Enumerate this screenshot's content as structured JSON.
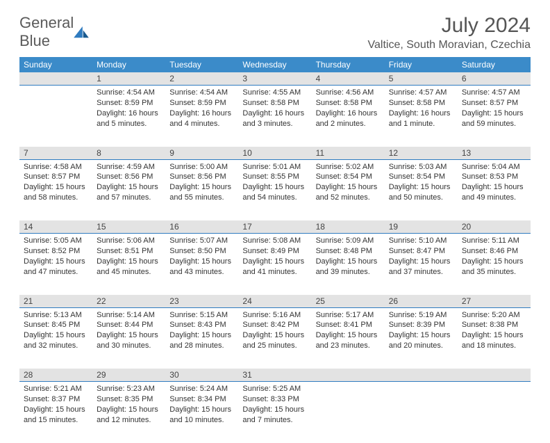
{
  "logo": {
    "part1": "General",
    "part2": "Blue"
  },
  "title": "July 2024",
  "location": "Valtice, South Moravian, Czechia",
  "colors": {
    "header_bg": "#3b8bc9",
    "daynum_bg": "#e3e3e3",
    "rule": "#2f7bbf",
    "logo_gray": "#5a5a5a",
    "logo_blue": "#2f7bbf"
  },
  "weekdays": [
    "Sunday",
    "Monday",
    "Tuesday",
    "Wednesday",
    "Thursday",
    "Friday",
    "Saturday"
  ],
  "weeks": [
    {
      "nums": [
        "",
        "1",
        "2",
        "3",
        "4",
        "5",
        "6"
      ],
      "cells": [
        null,
        {
          "sunrise": "Sunrise: 4:54 AM",
          "sunset": "Sunset: 8:59 PM",
          "day1": "Daylight: 16 hours",
          "day2": "and 5 minutes."
        },
        {
          "sunrise": "Sunrise: 4:54 AM",
          "sunset": "Sunset: 8:59 PM",
          "day1": "Daylight: 16 hours",
          "day2": "and 4 minutes."
        },
        {
          "sunrise": "Sunrise: 4:55 AM",
          "sunset": "Sunset: 8:58 PM",
          "day1": "Daylight: 16 hours",
          "day2": "and 3 minutes."
        },
        {
          "sunrise": "Sunrise: 4:56 AM",
          "sunset": "Sunset: 8:58 PM",
          "day1": "Daylight: 16 hours",
          "day2": "and 2 minutes."
        },
        {
          "sunrise": "Sunrise: 4:57 AM",
          "sunset": "Sunset: 8:58 PM",
          "day1": "Daylight: 16 hours",
          "day2": "and 1 minute."
        },
        {
          "sunrise": "Sunrise: 4:57 AM",
          "sunset": "Sunset: 8:57 PM",
          "day1": "Daylight: 15 hours",
          "day2": "and 59 minutes."
        }
      ]
    },
    {
      "nums": [
        "7",
        "8",
        "9",
        "10",
        "11",
        "12",
        "13"
      ],
      "cells": [
        {
          "sunrise": "Sunrise: 4:58 AM",
          "sunset": "Sunset: 8:57 PM",
          "day1": "Daylight: 15 hours",
          "day2": "and 58 minutes."
        },
        {
          "sunrise": "Sunrise: 4:59 AM",
          "sunset": "Sunset: 8:56 PM",
          "day1": "Daylight: 15 hours",
          "day2": "and 57 minutes."
        },
        {
          "sunrise": "Sunrise: 5:00 AM",
          "sunset": "Sunset: 8:56 PM",
          "day1": "Daylight: 15 hours",
          "day2": "and 55 minutes."
        },
        {
          "sunrise": "Sunrise: 5:01 AM",
          "sunset": "Sunset: 8:55 PM",
          "day1": "Daylight: 15 hours",
          "day2": "and 54 minutes."
        },
        {
          "sunrise": "Sunrise: 5:02 AM",
          "sunset": "Sunset: 8:54 PM",
          "day1": "Daylight: 15 hours",
          "day2": "and 52 minutes."
        },
        {
          "sunrise": "Sunrise: 5:03 AM",
          "sunset": "Sunset: 8:54 PM",
          "day1": "Daylight: 15 hours",
          "day2": "and 50 minutes."
        },
        {
          "sunrise": "Sunrise: 5:04 AM",
          "sunset": "Sunset: 8:53 PM",
          "day1": "Daylight: 15 hours",
          "day2": "and 49 minutes."
        }
      ]
    },
    {
      "nums": [
        "14",
        "15",
        "16",
        "17",
        "18",
        "19",
        "20"
      ],
      "cells": [
        {
          "sunrise": "Sunrise: 5:05 AM",
          "sunset": "Sunset: 8:52 PM",
          "day1": "Daylight: 15 hours",
          "day2": "and 47 minutes."
        },
        {
          "sunrise": "Sunrise: 5:06 AM",
          "sunset": "Sunset: 8:51 PM",
          "day1": "Daylight: 15 hours",
          "day2": "and 45 minutes."
        },
        {
          "sunrise": "Sunrise: 5:07 AM",
          "sunset": "Sunset: 8:50 PM",
          "day1": "Daylight: 15 hours",
          "day2": "and 43 minutes."
        },
        {
          "sunrise": "Sunrise: 5:08 AM",
          "sunset": "Sunset: 8:49 PM",
          "day1": "Daylight: 15 hours",
          "day2": "and 41 minutes."
        },
        {
          "sunrise": "Sunrise: 5:09 AM",
          "sunset": "Sunset: 8:48 PM",
          "day1": "Daylight: 15 hours",
          "day2": "and 39 minutes."
        },
        {
          "sunrise": "Sunrise: 5:10 AM",
          "sunset": "Sunset: 8:47 PM",
          "day1": "Daylight: 15 hours",
          "day2": "and 37 minutes."
        },
        {
          "sunrise": "Sunrise: 5:11 AM",
          "sunset": "Sunset: 8:46 PM",
          "day1": "Daylight: 15 hours",
          "day2": "and 35 minutes."
        }
      ]
    },
    {
      "nums": [
        "21",
        "22",
        "23",
        "24",
        "25",
        "26",
        "27"
      ],
      "cells": [
        {
          "sunrise": "Sunrise: 5:13 AM",
          "sunset": "Sunset: 8:45 PM",
          "day1": "Daylight: 15 hours",
          "day2": "and 32 minutes."
        },
        {
          "sunrise": "Sunrise: 5:14 AM",
          "sunset": "Sunset: 8:44 PM",
          "day1": "Daylight: 15 hours",
          "day2": "and 30 minutes."
        },
        {
          "sunrise": "Sunrise: 5:15 AM",
          "sunset": "Sunset: 8:43 PM",
          "day1": "Daylight: 15 hours",
          "day2": "and 28 minutes."
        },
        {
          "sunrise": "Sunrise: 5:16 AM",
          "sunset": "Sunset: 8:42 PM",
          "day1": "Daylight: 15 hours",
          "day2": "and 25 minutes."
        },
        {
          "sunrise": "Sunrise: 5:17 AM",
          "sunset": "Sunset: 8:41 PM",
          "day1": "Daylight: 15 hours",
          "day2": "and 23 minutes."
        },
        {
          "sunrise": "Sunrise: 5:19 AM",
          "sunset": "Sunset: 8:39 PM",
          "day1": "Daylight: 15 hours",
          "day2": "and 20 minutes."
        },
        {
          "sunrise": "Sunrise: 5:20 AM",
          "sunset": "Sunset: 8:38 PM",
          "day1": "Daylight: 15 hours",
          "day2": "and 18 minutes."
        }
      ]
    },
    {
      "nums": [
        "28",
        "29",
        "30",
        "31",
        "",
        "",
        ""
      ],
      "cells": [
        {
          "sunrise": "Sunrise: 5:21 AM",
          "sunset": "Sunset: 8:37 PM",
          "day1": "Daylight: 15 hours",
          "day2": "and 15 minutes."
        },
        {
          "sunrise": "Sunrise: 5:23 AM",
          "sunset": "Sunset: 8:35 PM",
          "day1": "Daylight: 15 hours",
          "day2": "and 12 minutes."
        },
        {
          "sunrise": "Sunrise: 5:24 AM",
          "sunset": "Sunset: 8:34 PM",
          "day1": "Daylight: 15 hours",
          "day2": "and 10 minutes."
        },
        {
          "sunrise": "Sunrise: 5:25 AM",
          "sunset": "Sunset: 8:33 PM",
          "day1": "Daylight: 15 hours",
          "day2": "and 7 minutes."
        },
        null,
        null,
        null
      ]
    }
  ]
}
